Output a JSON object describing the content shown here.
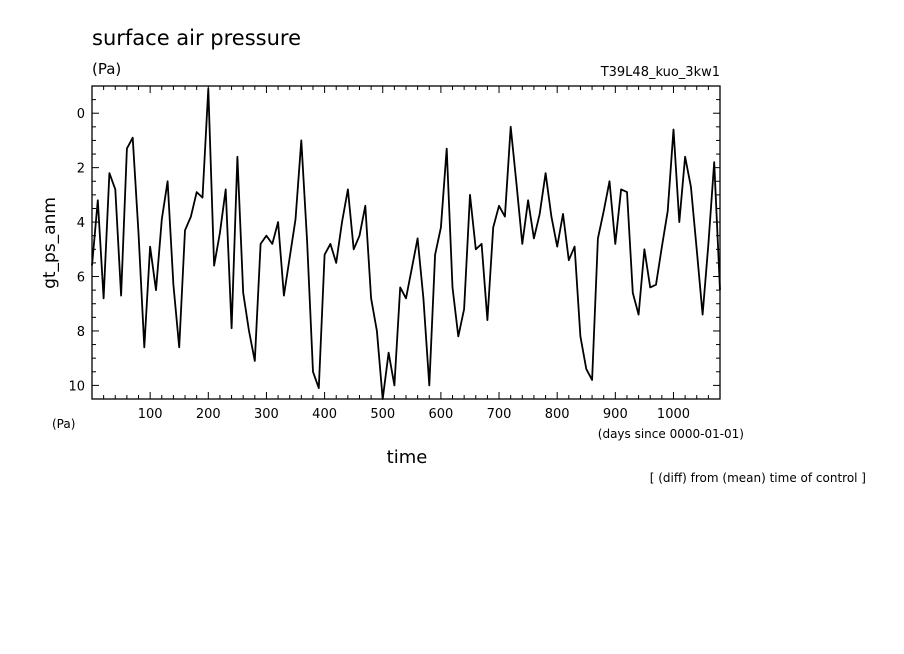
{
  "chart_data": {
    "type": "line",
    "title": "surface air pressure",
    "title_unit": "(Pa)",
    "run_label": "T39L48_kuo_3kw1",
    "ylabel": "gt_ps_anm",
    "y_unit": "(Pa)",
    "xlabel": "time",
    "x_unit": "(days since 0000-01-01)",
    "note": "[ (diff) from (mean) time of control ]",
    "xlim": [
      0,
      1080
    ],
    "ylim": [
      10.5,
      -1.0
    ],
    "x_ticks": [
      100,
      200,
      300,
      400,
      500,
      600,
      700,
      800,
      900,
      1000
    ],
    "y_ticks": [
      0,
      2,
      4,
      6,
      8,
      10
    ],
    "grid": false,
    "legend": "none",
    "colors": {
      "line": "#000000",
      "axes": "#000000"
    },
    "series": [
      {
        "x": [
          0,
          10,
          20,
          30,
          40,
          50,
          60,
          70,
          80,
          90,
          100,
          110,
          120,
          130,
          140,
          150,
          160,
          170,
          180,
          190,
          200,
          210,
          220,
          230,
          240,
          250,
          260,
          270,
          280,
          290,
          300,
          310,
          320,
          330,
          340,
          350,
          360,
          370,
          380,
          390,
          400,
          410,
          420,
          430,
          440,
          450,
          460,
          470,
          480,
          490,
          500,
          510,
          520,
          530,
          540,
          550,
          560,
          570,
          580,
          590,
          600,
          610,
          620,
          630,
          640,
          650,
          660,
          670,
          680,
          690,
          700,
          710,
          720,
          730,
          740,
          750,
          760,
          770,
          780,
          790,
          800,
          810,
          820,
          830,
          840,
          850,
          860,
          870,
          880,
          890,
          900,
          910,
          920,
          930,
          940,
          950,
          960,
          970,
          980,
          990,
          1000,
          1010,
          1020,
          1030,
          1040,
          1050,
          1060,
          1070,
          1080
        ],
        "values": [
          5.6,
          3.2,
          6.8,
          2.2,
          2.8,
          6.7,
          1.3,
          0.9,
          4.4,
          8.6,
          4.9,
          6.5,
          3.9,
          2.5,
          6.3,
          8.6,
          4.3,
          3.8,
          2.9,
          3.1,
          -0.9,
          5.6,
          4.4,
          2.8,
          7.9,
          1.6,
          6.6,
          8.0,
          9.1,
          4.8,
          4.5,
          4.8,
          4.0,
          6.7,
          5.3,
          3.9,
          1.0,
          4.7,
          9.5,
          10.1,
          5.2,
          4.8,
          5.5,
          4.0,
          2.8,
          5.0,
          4.5,
          3.4,
          6.8,
          8.0,
          10.5,
          8.8,
          10.0,
          6.4,
          6.8,
          5.7,
          4.6,
          6.8,
          10.0,
          5.2,
          4.2,
          1.3,
          6.4,
          8.2,
          7.2,
          3.0,
          5.0,
          4.8,
          7.6,
          4.2,
          3.4,
          3.8,
          0.5,
          2.6,
          4.8,
          3.2,
          4.6,
          3.7,
          2.2,
          3.8,
          4.9,
          3.7,
          5.4,
          4.9,
          8.2,
          9.4,
          9.8,
          4.6,
          3.6,
          2.5,
          4.8,
          2.8,
          2.9,
          6.6,
          7.4,
          5.0,
          6.4,
          6.3,
          4.9,
          3.6,
          0.6,
          4.0,
          1.6,
          2.7,
          5.0,
          7.4,
          4.8,
          1.8,
          6.5
        ]
      }
    ]
  }
}
